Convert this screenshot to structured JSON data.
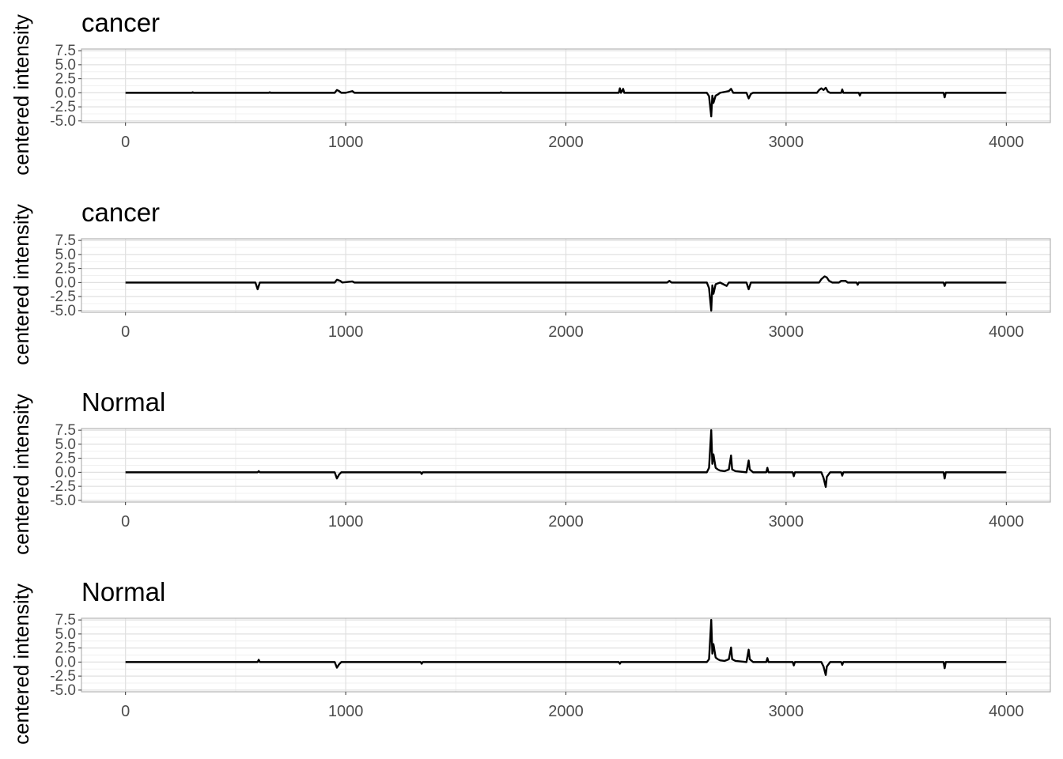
{
  "chart_data": [
    {
      "type": "line",
      "title": "cancer",
      "ylabel": "centered intensity",
      "xlim": [
        -200,
        4200
      ],
      "ylim": [
        -5.3,
        7.8
      ],
      "x_ticks": [
        "0",
        "1000",
        "2000",
        "3000",
        "4000"
      ],
      "y_ticks": [
        "7.5",
        "5.0",
        "2.5",
        "0.0",
        "-2.5",
        "-5.0"
      ],
      "grid": true,
      "series": [
        {
          "color": "#000000",
          "points": [
            [
              0,
              0
            ],
            [
              300,
              0
            ],
            [
              305,
              0.1
            ],
            [
              310,
              0
            ],
            [
              650,
              0
            ],
            [
              655,
              0.1
            ],
            [
              660,
              0
            ],
            [
              950,
              0
            ],
            [
              960,
              0.5
            ],
            [
              970,
              0.3
            ],
            [
              980,
              0
            ],
            [
              1000,
              0
            ],
            [
              1030,
              0.3
            ],
            [
              1040,
              0
            ],
            [
              1700,
              0
            ],
            [
              1705,
              0.1
            ],
            [
              1710,
              0
            ],
            [
              2240,
              0
            ],
            [
              2245,
              0.8
            ],
            [
              2250,
              0
            ],
            [
              2260,
              0.7
            ],
            [
              2265,
              0
            ],
            [
              2640,
              0
            ],
            [
              2650,
              -0.6
            ],
            [
              2660,
              -4.2
            ],
            [
              2665,
              -0.5
            ],
            [
              2670,
              -1.8
            ],
            [
              2680,
              -0.5
            ],
            [
              2690,
              -0.3
            ],
            [
              2700,
              0
            ],
            [
              2740,
              0.3
            ],
            [
              2750,
              0.7
            ],
            [
              2760,
              0
            ],
            [
              2820,
              0
            ],
            [
              2830,
              -1.0
            ],
            [
              2840,
              -0.2
            ],
            [
              2850,
              0
            ],
            [
              3140,
              0
            ],
            [
              3150,
              0.5
            ],
            [
              3160,
              0.8
            ],
            [
              3170,
              0.5
            ],
            [
              3180,
              0.9
            ],
            [
              3190,
              0.2
            ],
            [
              3200,
              0
            ],
            [
              3250,
              0
            ],
            [
              3255,
              0.6
            ],
            [
              3260,
              0
            ],
            [
              3330,
              0
            ],
            [
              3335,
              -0.5
            ],
            [
              3340,
              0
            ],
            [
              3715,
              0
            ],
            [
              3720,
              -0.8
            ],
            [
              3725,
              0
            ],
            [
              4000,
              0
            ]
          ]
        }
      ]
    },
    {
      "type": "line",
      "title": "cancer",
      "ylabel": "centered intensity",
      "xlim": [
        -200,
        4200
      ],
      "ylim": [
        -5.3,
        7.8
      ],
      "x_ticks": [
        "0",
        "1000",
        "2000",
        "3000",
        "4000"
      ],
      "y_ticks": [
        "7.5",
        "5.0",
        "2.5",
        "0.0",
        "-2.5",
        "-5.0"
      ],
      "grid": true,
      "series": [
        {
          "color": "#000000",
          "points": [
            [
              0,
              0
            ],
            [
              590,
              0
            ],
            [
              600,
              -1.2
            ],
            [
              610,
              0
            ],
            [
              950,
              0
            ],
            [
              960,
              0.5
            ],
            [
              975,
              0.3
            ],
            [
              985,
              0
            ],
            [
              1030,
              0.2
            ],
            [
              1040,
              0
            ],
            [
              2460,
              0
            ],
            [
              2470,
              0.3
            ],
            [
              2480,
              0
            ],
            [
              2640,
              0
            ],
            [
              2650,
              -1.0
            ],
            [
              2660,
              -5.0
            ],
            [
              2665,
              -0.5
            ],
            [
              2670,
              -2.0
            ],
            [
              2680,
              -0.3
            ],
            [
              2700,
              0
            ],
            [
              2730,
              -0.6
            ],
            [
              2740,
              0
            ],
            [
              2820,
              0
            ],
            [
              2830,
              -1.2
            ],
            [
              2840,
              0
            ],
            [
              3150,
              0
            ],
            [
              3160,
              0.6
            ],
            [
              3175,
              1.1
            ],
            [
              3185,
              0.9
            ],
            [
              3195,
              0.3
            ],
            [
              3210,
              0
            ],
            [
              3240,
              0
            ],
            [
              3250,
              0.3
            ],
            [
              3270,
              0.3
            ],
            [
              3280,
              0
            ],
            [
              3320,
              0
            ],
            [
              3325,
              -0.4
            ],
            [
              3330,
              0
            ],
            [
              3715,
              0
            ],
            [
              3720,
              -0.6
            ],
            [
              3725,
              0
            ],
            [
              4000,
              0
            ]
          ]
        }
      ]
    },
    {
      "type": "line",
      "title": "Normal",
      "ylabel": "centered intensity",
      "xlim": [
        -200,
        4200
      ],
      "ylim": [
        -5.3,
        7.8
      ],
      "x_ticks": [
        "0",
        "1000",
        "2000",
        "3000",
        "4000"
      ],
      "y_ticks": [
        "7.5",
        "5.0",
        "2.5",
        "0.0",
        "-2.5",
        "-5.0"
      ],
      "grid": true,
      "series": [
        {
          "color": "#000000",
          "points": [
            [
              0,
              0
            ],
            [
              600,
              0
            ],
            [
              605,
              0.2
            ],
            [
              610,
              0
            ],
            [
              950,
              0
            ],
            [
              960,
              -1.1
            ],
            [
              970,
              -0.4
            ],
            [
              980,
              0
            ],
            [
              1340,
              0
            ],
            [
              1345,
              -0.3
            ],
            [
              1350,
              0
            ],
            [
              2640,
              0
            ],
            [
              2650,
              0.8
            ],
            [
              2660,
              7.5
            ],
            [
              2665,
              1.5
            ],
            [
              2670,
              3.2
            ],
            [
              2680,
              0.8
            ],
            [
              2690,
              0.5
            ],
            [
              2700,
              0.3
            ],
            [
              2720,
              0.2
            ],
            [
              2740,
              0.5
            ],
            [
              2750,
              3.0
            ],
            [
              2755,
              0.5
            ],
            [
              2770,
              0.2
            ],
            [
              2820,
              0
            ],
            [
              2830,
              2.1
            ],
            [
              2835,
              0.5
            ],
            [
              2850,
              0
            ],
            [
              2910,
              0
            ],
            [
              2915,
              0.8
            ],
            [
              2920,
              0
            ],
            [
              3030,
              0
            ],
            [
              3035,
              -0.7
            ],
            [
              3040,
              0
            ],
            [
              3160,
              0
            ],
            [
              3170,
              -1.0
            ],
            [
              3180,
              -2.6
            ],
            [
              3185,
              -0.8
            ],
            [
              3200,
              0
            ],
            [
              3250,
              0
            ],
            [
              3255,
              -0.6
            ],
            [
              3260,
              0
            ],
            [
              3715,
              0
            ],
            [
              3720,
              -1.1
            ],
            [
              3725,
              0
            ],
            [
              4000,
              0
            ]
          ]
        }
      ]
    },
    {
      "type": "line",
      "title": "Normal",
      "ylabel": "centered intensity",
      "xlim": [
        -200,
        4200
      ],
      "ylim": [
        -5.3,
        7.8
      ],
      "x_ticks": [
        "0",
        "1000",
        "2000",
        "3000",
        "4000"
      ],
      "y_ticks": [
        "7.5",
        "5.0",
        "2.5",
        "0.0",
        "-2.5",
        "-5.0"
      ],
      "grid": true,
      "series": [
        {
          "color": "#000000",
          "points": [
            [
              0,
              0
            ],
            [
              600,
              0
            ],
            [
              605,
              0.4
            ],
            [
              610,
              0
            ],
            [
              950,
              0
            ],
            [
              960,
              -1.0
            ],
            [
              970,
              -0.4
            ],
            [
              980,
              0
            ],
            [
              1340,
              0
            ],
            [
              1345,
              -0.3
            ],
            [
              1350,
              0
            ],
            [
              2240,
              0
            ],
            [
              2245,
              -0.3
            ],
            [
              2250,
              0
            ],
            [
              2640,
              0
            ],
            [
              2650,
              0.5
            ],
            [
              2660,
              7.5
            ],
            [
              2665,
              1.5
            ],
            [
              2670,
              3.2
            ],
            [
              2680,
              0.8
            ],
            [
              2690,
              0.5
            ],
            [
              2700,
              0.3
            ],
            [
              2720,
              0.2
            ],
            [
              2740,
              0.5
            ],
            [
              2750,
              2.6
            ],
            [
              2755,
              0.5
            ],
            [
              2770,
              0.2
            ],
            [
              2820,
              0
            ],
            [
              2830,
              2.2
            ],
            [
              2835,
              0.5
            ],
            [
              2850,
              0
            ],
            [
              2910,
              0
            ],
            [
              2915,
              0.7
            ],
            [
              2920,
              0
            ],
            [
              3030,
              0
            ],
            [
              3035,
              -0.6
            ],
            [
              3040,
              0
            ],
            [
              3160,
              0
            ],
            [
              3170,
              -0.8
            ],
            [
              3180,
              -2.3
            ],
            [
              3185,
              -0.8
            ],
            [
              3200,
              0
            ],
            [
              3250,
              0
            ],
            [
              3255,
              -0.5
            ],
            [
              3260,
              0
            ],
            [
              3715,
              0
            ],
            [
              3720,
              -1.1
            ],
            [
              3725,
              0
            ],
            [
              4000,
              0
            ]
          ]
        }
      ]
    }
  ]
}
